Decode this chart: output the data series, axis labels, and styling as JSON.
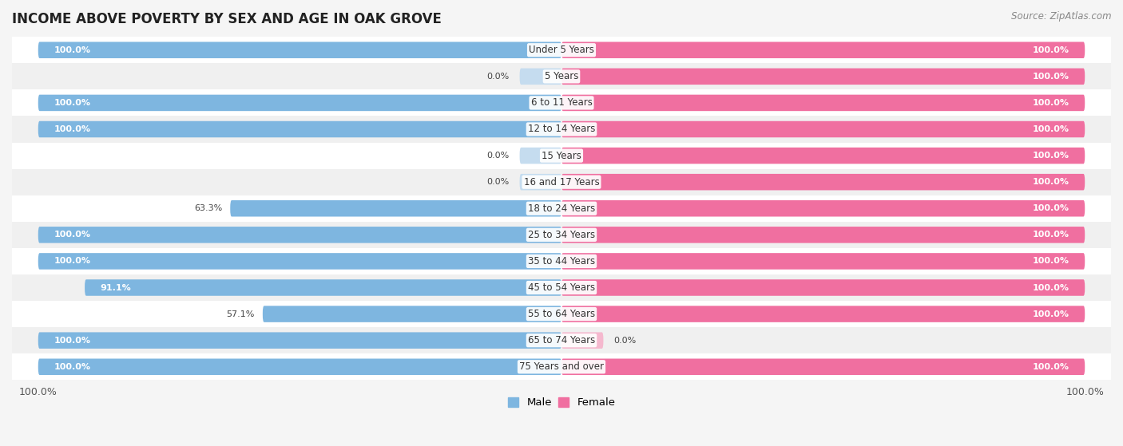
{
  "title": "INCOME ABOVE POVERTY BY SEX AND AGE IN OAK GROVE",
  "source": "Source: ZipAtlas.com",
  "categories": [
    "Under 5 Years",
    "5 Years",
    "6 to 11 Years",
    "12 to 14 Years",
    "15 Years",
    "16 and 17 Years",
    "18 to 24 Years",
    "25 to 34 Years",
    "35 to 44 Years",
    "45 to 54 Years",
    "55 to 64 Years",
    "65 to 74 Years",
    "75 Years and over"
  ],
  "male_values": [
    100.0,
    0.0,
    100.0,
    100.0,
    0.0,
    0.0,
    63.3,
    100.0,
    100.0,
    91.1,
    57.1,
    100.0,
    100.0
  ],
  "female_values": [
    100.0,
    100.0,
    100.0,
    100.0,
    100.0,
    100.0,
    100.0,
    100.0,
    100.0,
    100.0,
    100.0,
    0.0,
    100.0
  ],
  "male_color": "#7eb6e0",
  "female_color": "#f06fa0",
  "row_color_odd": "#f0f0f0",
  "row_color_even": "#ffffff",
  "bg_color": "#f5f5f5",
  "title_fontsize": 12,
  "label_fontsize": 8.5,
  "value_fontsize": 8,
  "bar_height": 0.62,
  "xlim_left": -105,
  "xlim_right": 105
}
